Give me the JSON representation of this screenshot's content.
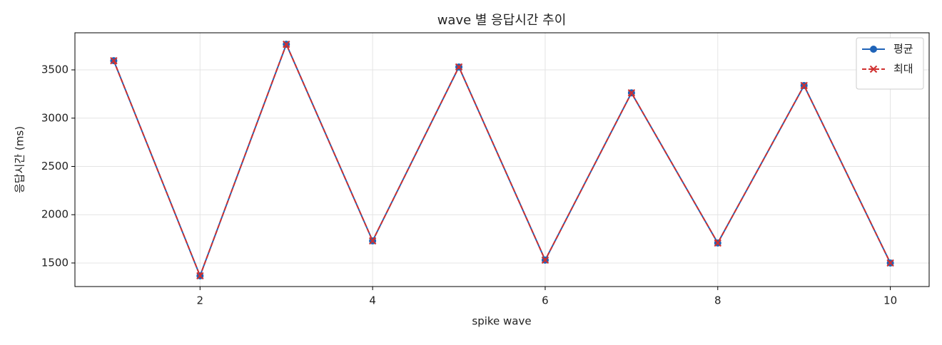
{
  "chart_data": {
    "type": "line",
    "title": "wave 별 응답시간 추이",
    "x_label": "spike wave",
    "y_label": "응답시간 (ms)",
    "x": [
      1,
      2,
      3,
      4,
      5,
      6,
      7,
      8,
      9,
      10
    ],
    "series": [
      {
        "name": "평균",
        "color": "#1f63b8",
        "marker": "circle",
        "dashed": false,
        "values": [
          3595,
          1367,
          3765,
          1729,
          3530,
          1530,
          3262,
          1707,
          3338,
          1500
        ]
      },
      {
        "name": "최대",
        "color": "#d0302f",
        "marker": "cross",
        "dashed": true,
        "values": [
          3595,
          1367,
          3765,
          1729,
          3530,
          1530,
          3262,
          1707,
          3338,
          1500
        ]
      }
    ],
    "xlim": [
      0.55,
      10.45
    ],
    "xticks": [
      2,
      4,
      6,
      8,
      10
    ],
    "ylim": [
      1256,
      3884
    ],
    "yticks": [
      1500,
      2000,
      2500,
      3000,
      3500
    ],
    "grid": true,
    "legend": "upper-right"
  }
}
